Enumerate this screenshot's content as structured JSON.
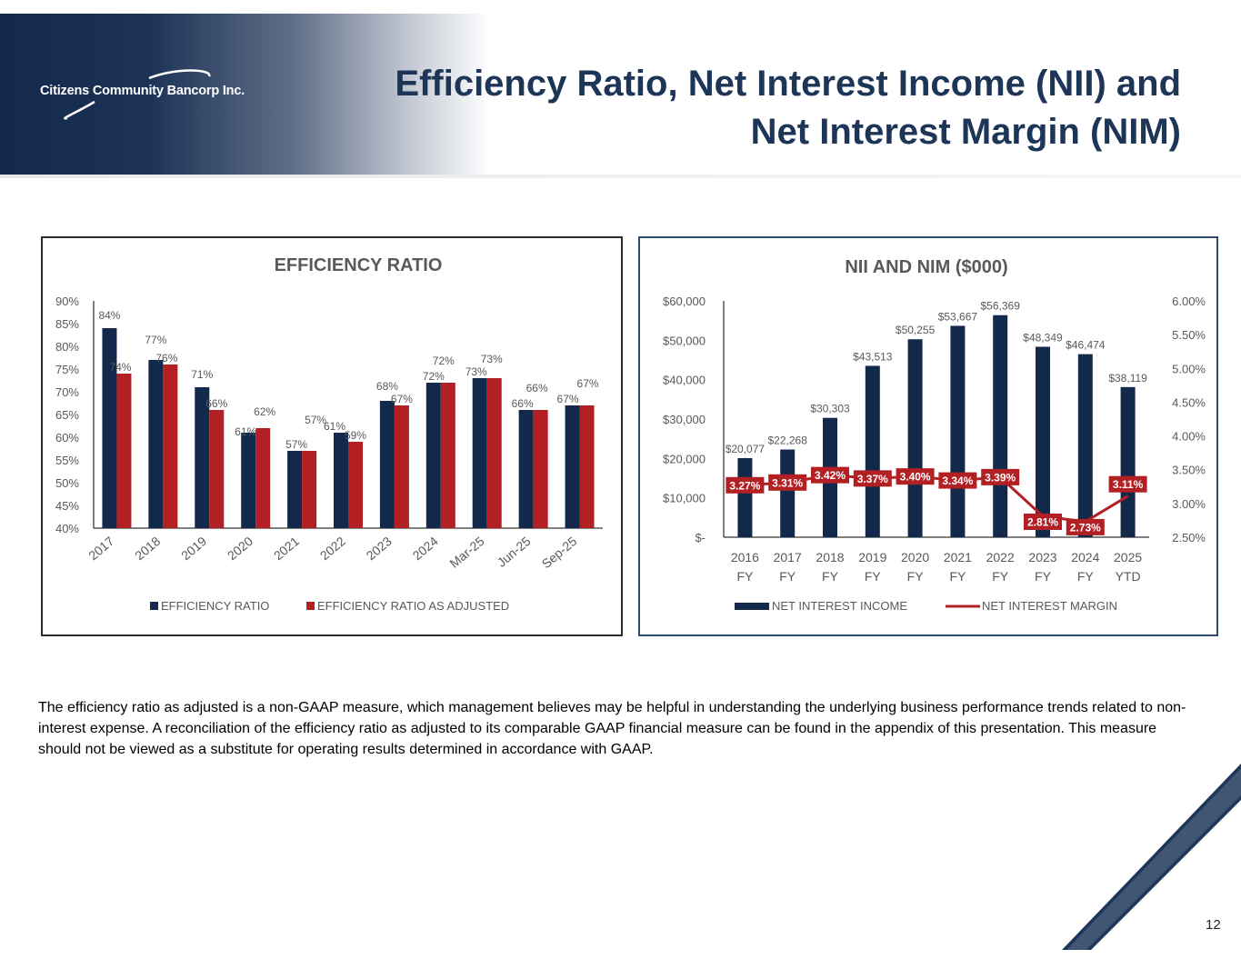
{
  "header": {
    "logo_text": "Citizens Community Bancorp Inc.",
    "title_line1": "Efficiency Ratio, Net Interest Income (NII) and",
    "title_line2": "Net Interest Margin (NIM)"
  },
  "footnote": "The efficiency ratio as adjusted is a non-GAAP measure, which management believes may be helpful in understanding the underlying business performance trends related to non-interest expense. A reconciliation of the efficiency ratio as adjusted to its comparable GAAP financial measure can be found in the appendix of this presentation. This measure should not be viewed as a substitute for operating results determined in accordance with GAAP.",
  "page_number": "12",
  "colors": {
    "navy": "#13294b",
    "red": "#b22024",
    "title": "#1d3557"
  },
  "chart_data": [
    {
      "type": "bar",
      "title": "EFFICIENCY RATIO",
      "categories": [
        "2017",
        "2018",
        "2019",
        "2020",
        "2021",
        "2022",
        "2023",
        "2024",
        "Mar-25",
        "Jun-25",
        "Sep-25"
      ],
      "series": [
        {
          "name": "EFFICIENCY RATIO",
          "values": [
            84,
            77,
            71,
            61,
            57,
            61,
            68,
            72,
            73,
            66,
            67
          ],
          "labels": [
            "84%",
            "77%",
            "71%",
            "61%",
            "57%",
            "61%",
            "68%",
            "72%",
            "73%",
            "66%",
            "67%"
          ]
        },
        {
          "name": "EFFICIENCY RATIO AS ADJUSTED",
          "values": [
            74,
            76,
            66,
            62,
            57,
            59,
            67,
            72,
            73,
            66,
            67
          ],
          "labels": [
            "74%",
            "76%",
            "66%",
            "62%",
            "57%",
            "59%",
            "67%",
            "72%",
            "73%",
            "66%",
            "67%"
          ]
        }
      ],
      "ylim": [
        40,
        90
      ],
      "yticks": [
        "40%",
        "45%",
        "50%",
        "55%",
        "60%",
        "65%",
        "70%",
        "75%",
        "80%",
        "85%",
        "90%"
      ],
      "legend": "bottom"
    },
    {
      "type": "bar+line",
      "title": "NII AND NIM ($000)",
      "categories": [
        "2016 FY",
        "2017 FY",
        "2018 FY",
        "2019 FY",
        "2020 FY",
        "2021 FY",
        "2022 FY",
        "2023 FY",
        "2024 FY",
        "2025 YTD"
      ],
      "series": [
        {
          "name": "NET INTEREST INCOME",
          "type": "bar",
          "axis": "left",
          "values": [
            20077,
            22268,
            30303,
            43513,
            50255,
            53667,
            56369,
            48349,
            46474,
            38119
          ],
          "labels": [
            "$20,077",
            "$22,268",
            "$30,303",
            "$43,513",
            "$50,255",
            "$53,667",
            "$56,369",
            "$48,349",
            "$46,474",
            "$38,119"
          ]
        },
        {
          "name": "NET INTEREST MARGIN",
          "type": "line",
          "axis": "right",
          "values": [
            3.27,
            3.31,
            3.42,
            3.37,
            3.4,
            3.34,
            3.39,
            2.81,
            2.73,
            3.11
          ],
          "labels": [
            "3.27%",
            "3.31%",
            "3.42%",
            "3.37%",
            "3.40%",
            "3.34%",
            "3.39%",
            "2.81%",
            "2.73%",
            "3.11%"
          ]
        }
      ],
      "ylim_left": [
        0,
        60000
      ],
      "ylim_right": [
        2.5,
        6.0
      ],
      "yticks_left": [
        "$-",
        "$10,000",
        "$20,000",
        "$30,000",
        "$40,000",
        "$50,000",
        "$60,000"
      ],
      "yticks_right": [
        "2.50%",
        "3.00%",
        "3.50%",
        "4.00%",
        "4.50%",
        "5.00%",
        "5.50%",
        "6.00%"
      ],
      "legend": "bottom"
    }
  ]
}
